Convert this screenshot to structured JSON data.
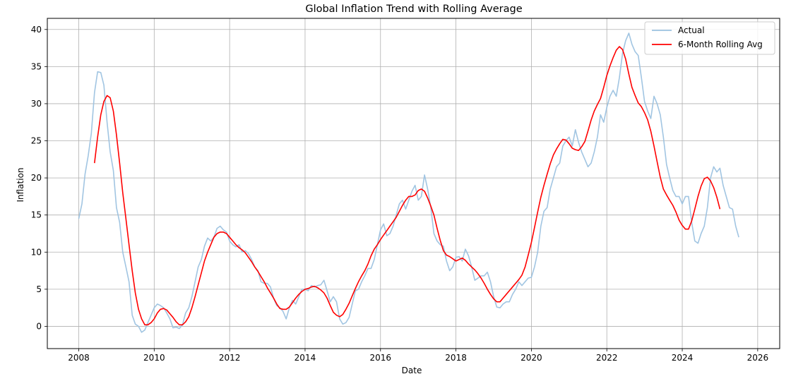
{
  "chart_data": {
    "type": "line",
    "title": "Global Inflation Trend with Rolling Average",
    "xlabel": "Date",
    "ylabel": "Inflation",
    "xlim": [
      "2007-03",
      "2026-08"
    ],
    "ylim": [
      -3,
      41.5
    ],
    "x_ticks": [
      "2008",
      "2010",
      "2012",
      "2014",
      "2016",
      "2018",
      "2020",
      "2022",
      "2024",
      "2026"
    ],
    "y_ticks": [
      0,
      5,
      10,
      15,
      20,
      25,
      30,
      35,
      40
    ],
    "grid": true,
    "legend_position": "upper right",
    "series": [
      {
        "name": "Actual",
        "color": "#9cc2e0",
        "start": "2008-01",
        "frequency": "monthly",
        "values": [
          14.5,
          16.5,
          20.5,
          23.0,
          26.0,
          31.5,
          34.3,
          34.2,
          32.5,
          27.5,
          23.5,
          21.0,
          16.0,
          14.0,
          10.0,
          8.0,
          6.0,
          1.5,
          0.3,
          0.0,
          -0.8,
          -0.5,
          0.5,
          1.5,
          2.5,
          3.0,
          2.8,
          2.5,
          1.8,
          1.0,
          -0.2,
          -0.1,
          -0.3,
          0.2,
          1.8,
          2.5,
          4.0,
          6.0,
          8.0,
          9.0,
          10.8,
          11.9,
          11.5,
          12.0,
          13.2,
          13.5,
          13.0,
          12.7,
          11.5,
          11.0,
          10.7,
          11.0,
          10.0,
          10.2,
          9.8,
          9.0,
          8.0,
          7.5,
          6.0,
          5.8,
          5.8,
          5.3,
          3.8,
          2.8,
          2.5,
          2.0,
          1.0,
          2.5,
          3.5,
          3.0,
          4.0,
          5.0,
          5.0,
          4.8,
          5.5,
          5.3,
          5.5,
          5.6,
          6.2,
          4.8,
          3.3,
          4.0,
          3.3,
          1.0,
          0.3,
          0.5,
          1.2,
          3.0,
          4.8,
          5.0,
          6.0,
          6.8,
          7.8,
          7.8,
          9.0,
          11.0,
          13.0,
          13.8,
          12.2,
          12.5,
          13.5,
          15.0,
          16.5,
          17.0,
          15.8,
          17.0,
          18.2,
          19.0,
          17.0,
          17.5,
          20.4,
          18.5,
          16.0,
          12.5,
          11.5,
          11.0,
          10.8,
          8.8,
          7.5,
          8.0,
          9.3,
          9.4,
          8.8,
          10.4,
          9.5,
          8.0,
          6.2,
          6.5,
          6.8,
          6.8,
          7.3,
          6.0,
          4.0,
          2.6,
          2.5,
          3.0,
          3.3,
          3.3,
          4.3,
          5.0,
          6.0,
          5.5,
          6.0,
          6.5,
          6.6,
          8.0,
          10.0,
          13.5,
          15.5,
          16.0,
          18.5,
          20.0,
          21.5,
          22.0,
          24.3,
          25.0,
          25.5,
          24.3,
          26.5,
          24.8,
          23.5,
          22.5,
          21.5,
          22.0,
          23.5,
          25.5,
          28.5,
          27.5,
          29.5,
          31.0,
          31.8,
          31.0,
          33.5,
          36.8,
          38.5,
          39.5,
          38.0,
          37.0,
          36.5,
          33.5,
          30.3,
          29.0,
          28.0,
          31.0,
          30.0,
          28.5,
          25.5,
          21.8,
          20.0,
          18.3,
          17.5,
          17.5,
          16.5,
          17.5,
          17.5,
          14.0,
          11.5,
          11.2,
          12.5,
          13.5,
          16.0,
          20.0,
          21.5,
          20.8,
          21.3,
          19.0,
          17.5,
          16.0,
          15.8,
          13.5,
          12.0
        ]
      },
      {
        "name": "6-Month Rolling Avg",
        "color": "#ff0000",
        "start": "2008-06",
        "frequency": "monthly",
        "values": [
          22.0,
          25.5,
          28.5,
          30.3,
          31.1,
          30.8,
          29.0,
          25.8,
          22.0,
          18.0,
          14.5,
          11.0,
          7.5,
          4.5,
          2.3,
          1.0,
          0.2,
          0.2,
          0.5,
          1.0,
          1.8,
          2.3,
          2.4,
          2.2,
          1.7,
          1.2,
          0.6,
          0.2,
          0.2,
          0.6,
          1.3,
          2.5,
          4.0,
          5.6,
          7.2,
          8.8,
          10.0,
          11.0,
          12.0,
          12.5,
          12.7,
          12.7,
          12.5,
          12.0,
          11.5,
          11.0,
          10.6,
          10.3,
          9.9,
          9.3,
          8.7,
          8.0,
          7.4,
          6.7,
          6.0,
          5.2,
          4.5,
          3.8,
          3.0,
          2.4,
          2.3,
          2.3,
          2.6,
          3.2,
          3.8,
          4.3,
          4.7,
          5.0,
          5.1,
          5.3,
          5.4,
          5.2,
          4.9,
          4.5,
          3.8,
          2.8,
          1.9,
          1.5,
          1.3,
          1.6,
          2.3,
          3.1,
          4.1,
          5.1,
          6.0,
          6.8,
          7.5,
          8.4,
          9.5,
          10.4,
          11.0,
          11.7,
          12.3,
          12.9,
          13.5,
          14.1,
          14.7,
          15.5,
          16.3,
          17.0,
          17.5,
          17.5,
          17.7,
          18.3,
          18.5,
          18.2,
          17.3,
          16.2,
          15.0,
          13.2,
          11.6,
          10.2,
          9.6,
          9.4,
          9.1,
          8.8,
          9.0,
          9.2,
          8.9,
          8.4,
          8.0,
          7.6,
          7.1,
          6.5,
          5.8,
          5.0,
          4.3,
          3.7,
          3.3,
          3.3,
          3.8,
          4.3,
          4.8,
          5.3,
          5.8,
          6.3,
          6.9,
          8.0,
          9.6,
          11.3,
          13.3,
          15.4,
          17.4,
          19.0,
          20.5,
          21.9,
          23.1,
          23.9,
          24.6,
          25.2,
          25.1,
          24.6,
          24.0,
          23.8,
          23.7,
          24.2,
          24.9,
          26.3,
          27.8,
          29.0,
          29.9,
          30.7,
          32.2,
          33.8,
          35.1,
          36.2,
          37.2,
          37.7,
          37.3,
          36.0,
          34.0,
          32.2,
          31.1,
          30.1,
          29.6,
          28.8,
          27.8,
          26.3,
          24.3,
          22.2,
          20.1,
          18.5,
          17.7,
          17.0,
          16.3,
          15.4,
          14.3,
          13.6,
          13.1,
          13.1,
          14.2,
          15.8,
          17.5,
          18.9,
          19.9,
          20.1,
          19.6,
          18.7,
          17.4,
          15.8
        ]
      }
    ]
  }
}
